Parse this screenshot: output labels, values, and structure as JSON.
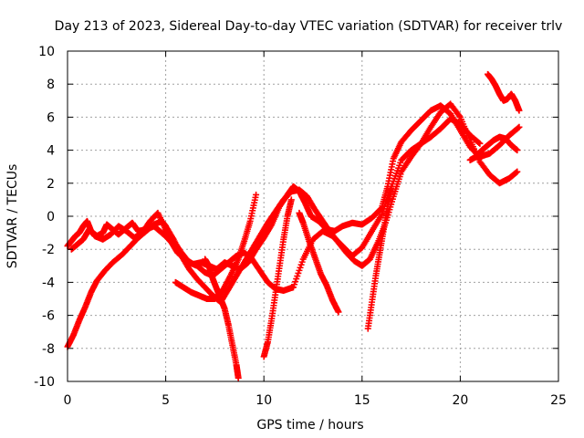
{
  "chart_data": {
    "type": "scatter",
    "title": "Day 213 of 2023, Sidereal Day-to-day VTEC variation (SDTVAR) for receiver trlv",
    "xlabel": "GPS time / hours",
    "ylabel": "SDTVAR / TECUs",
    "xlim": [
      0,
      25
    ],
    "ylim": [
      -10,
      10
    ],
    "x_ticks": [
      0,
      5,
      10,
      15,
      20,
      25
    ],
    "y_ticks": [
      -10,
      -8,
      -6,
      -4,
      -2,
      0,
      2,
      4,
      6,
      8,
      10
    ],
    "x_tick_labels": [
      "0",
      "5",
      "10",
      "15",
      "20",
      "25"
    ],
    "y_tick_labels": [
      "-10",
      "-8",
      "-6",
      "-4",
      "-2",
      "0",
      "2",
      "4",
      "6",
      "8",
      "10"
    ],
    "grid": true,
    "marker": "+",
    "color": "#ff0000",
    "series": [
      {
        "x": [
          0.0,
          0.2,
          0.4,
          0.6,
          0.8,
          1.0,
          1.2,
          1.5,
          1.8,
          2.0,
          2.3,
          2.6,
          3.0,
          3.3,
          3.6,
          4.0,
          4.4,
          4.8,
          5.0,
          5.3,
          5.6,
          6.0,
          6.4,
          6.8,
          7.2,
          7.6,
          8.0,
          8.4,
          8.8,
          9.2,
          9.6,
          10.0,
          10.4,
          10.8,
          11.2,
          11.5,
          11.8,
          12.1,
          12.4,
          12.8,
          13.2,
          13.6,
          14.0,
          14.5,
          15.0,
          15.5,
          16.0,
          16.3,
          16.6,
          17.0,
          17.5,
          18.0,
          18.5,
          19.0,
          19.5,
          20.0,
          20.5,
          21.0,
          21.5,
          22.0,
          22.5,
          23.0
        ],
        "y": [
          -1.8,
          -1.5,
          -1.2,
          -1.0,
          -0.6,
          -0.3,
          -0.9,
          -1.2,
          -1.0,
          -0.5,
          -0.8,
          -1.1,
          -0.7,
          -0.4,
          -0.9,
          -0.8,
          -0.6,
          -1.0,
          -1.2,
          -1.6,
          -2.2,
          -2.6,
          -2.9,
          -2.8,
          -3.0,
          -3.2,
          -2.8,
          -3.0,
          -3.2,
          -2.8,
          -2.0,
          -1.3,
          -0.5,
          0.6,
          1.3,
          1.8,
          1.5,
          0.8,
          0.0,
          -0.3,
          -0.8,
          -0.9,
          -0.6,
          -0.4,
          -0.5,
          -0.1,
          0.5,
          1.8,
          3.5,
          4.5,
          5.2,
          5.8,
          6.4,
          6.7,
          6.2,
          5.2,
          4.2,
          3.6,
          3.8,
          4.3,
          4.9,
          5.4
        ]
      },
      {
        "x": [
          0.0,
          0.3,
          0.6,
          0.9,
          1.2,
          1.5,
          1.9,
          2.3,
          2.8,
          3.2,
          3.6,
          4.0,
          4.4,
          4.8,
          5.0,
          5.4,
          5.8,
          6.2,
          6.6,
          7.0,
          7.4,
          7.8,
          8.2,
          8.6,
          9.0,
          9.4,
          9.8,
          10.2,
          10.6,
          11.0,
          11.4,
          11.8,
          12.2,
          12.6,
          13.0,
          13.4,
          13.8,
          14.2,
          14.6,
          15.0,
          15.4,
          15.8,
          16.2,
          16.6,
          17.0,
          17.5,
          18.0,
          18.5,
          19.0,
          19.5,
          20.0,
          20.5,
          21.0,
          21.5,
          22.0,
          22.5,
          22.9
        ],
        "y": [
          -7.9,
          -7.2,
          -6.3,
          -5.5,
          -4.6,
          -3.9,
          -3.3,
          -2.8,
          -2.3,
          -1.8,
          -1.3,
          -0.9,
          -0.5,
          -0.3,
          -0.6,
          -1.4,
          -2.4,
          -3.2,
          -3.8,
          -4.3,
          -4.8,
          -5.2,
          -4.4,
          -3.6,
          -2.8,
          -2.0,
          -1.2,
          -0.4,
          0.3,
          1.0,
          1.5,
          1.6,
          1.2,
          0.4,
          -0.3,
          -1.0,
          -1.6,
          -2.2,
          -2.7,
          -3.0,
          -2.6,
          -1.6,
          -0.4,
          1.2,
          2.7,
          3.6,
          4.4,
          5.4,
          6.3,
          6.8,
          6.0,
          4.6,
          3.3,
          2.5,
          2.0,
          2.3,
          2.7
        ]
      },
      {
        "x": [
          0.2,
          0.5,
          0.8,
          1.1,
          1.4,
          1.8,
          2.2,
          2.6,
          3.0,
          3.4,
          3.8,
          4.2,
          4.6,
          5.0,
          5.4,
          5.8,
          6.2,
          6.6,
          7.0,
          7.4,
          7.8,
          8.2,
          8.6,
          9.0,
          9.4,
          9.8,
          10.2,
          10.6,
          11.0,
          11.5,
          12.0,
          12.5,
          13.0,
          13.5,
          14.0,
          14.5,
          15.0,
          15.5,
          16.0,
          16.5,
          17.0,
          17.5,
          18.0,
          18.5,
          19.0,
          19.5,
          20.0,
          20.5,
          21.0
        ],
        "y": [
          -2.0,
          -1.7,
          -1.4,
          -0.8,
          -1.2,
          -1.4,
          -1.1,
          -0.6,
          -0.9,
          -1.3,
          -1.0,
          -0.3,
          0.2,
          -0.8,
          -1.5,
          -2.2,
          -2.8,
          -3.0,
          -3.4,
          -3.6,
          -3.2,
          -2.8,
          -2.4,
          -2.2,
          -2.6,
          -3.3,
          -4.0,
          -4.4,
          -4.5,
          -4.3,
          -2.6,
          -1.4,
          -0.9,
          -1.2,
          -1.8,
          -2.4,
          -1.9,
          -0.9,
          0.1,
          1.8,
          3.4,
          4.0,
          4.4,
          4.8,
          5.3,
          5.9,
          5.6,
          4.9,
          4.4
        ]
      },
      {
        "x": [
          5.5,
          5.9,
          6.3,
          6.7,
          7.1,
          7.5,
          7.9,
          8.3,
          8.7,
          9.0,
          9.3,
          9.6
        ],
        "y": [
          -4.0,
          -4.3,
          -4.6,
          -4.8,
          -5.0,
          -5.0,
          -4.5,
          -3.6,
          -2.6,
          -1.5,
          -0.3,
          1.3
        ]
      },
      {
        "x": [
          7.0,
          7.2,
          7.4,
          7.6,
          7.8,
          8.0,
          8.2,
          8.4,
          8.6,
          8.7
        ],
        "y": [
          -2.6,
          -3.0,
          -3.8,
          -4.4,
          -5.0,
          -5.6,
          -6.6,
          -7.8,
          -9.0,
          -9.8
        ]
      },
      {
        "x": [
          10.0,
          10.2,
          10.4,
          10.6,
          10.8,
          11.0,
          11.2,
          11.4
        ],
        "y": [
          -8.5,
          -7.6,
          -6.2,
          -4.6,
          -3.0,
          -1.4,
          0.0,
          1.0
        ]
      },
      {
        "x": [
          11.8,
          12.0,
          12.3,
          12.6,
          12.9,
          13.2,
          13.5,
          13.8
        ],
        "y": [
          0.2,
          -0.4,
          -1.5,
          -2.5,
          -3.5,
          -4.2,
          -5.1,
          -5.8
        ]
      },
      {
        "x": [
          15.3,
          15.5,
          15.7,
          15.9,
          16.1,
          16.3,
          16.5
        ],
        "y": [
          -6.8,
          -5.2,
          -3.6,
          -2.2,
          -0.8,
          0.6,
          1.8
        ]
      },
      {
        "x": [
          21.4,
          21.6,
          21.8,
          22.0,
          22.2,
          22.4,
          22.6,
          22.8,
          23.0
        ],
        "y": [
          8.6,
          8.3,
          7.9,
          7.4,
          7.0,
          7.1,
          7.4,
          7.0,
          6.4
        ]
      },
      {
        "x": [
          20.5,
          20.8,
          21.1,
          21.4,
          21.7,
          22.0,
          22.3,
          22.6,
          22.9
        ],
        "y": [
          3.4,
          3.6,
          4.0,
          4.3,
          4.6,
          4.8,
          4.7,
          4.3,
          4.0
        ]
      }
    ]
  }
}
